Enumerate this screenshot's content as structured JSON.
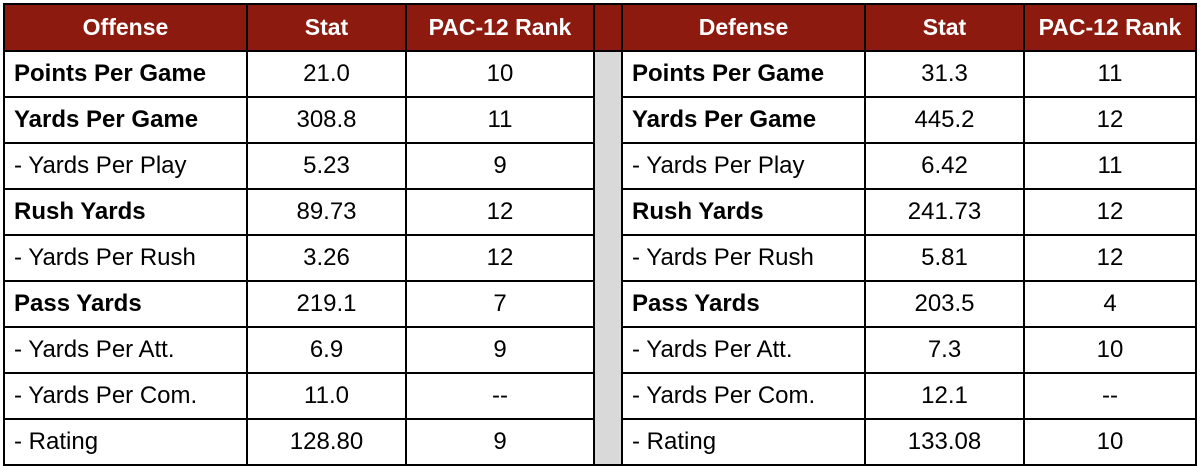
{
  "offense": {
    "headers": [
      "Offense",
      "Stat",
      "PAC-12 Rank"
    ],
    "rows": [
      {
        "label": "Points Per Game",
        "stat": "21.0",
        "rank": "10",
        "bold": true
      },
      {
        "label": "Yards Per Game",
        "stat": "308.8",
        "rank": "11",
        "bold": true
      },
      {
        "label": "- Yards Per Play",
        "stat": "5.23",
        "rank": "9",
        "bold": false
      },
      {
        "label": "Rush Yards",
        "stat": "89.73",
        "rank": "12",
        "bold": true
      },
      {
        "label": "- Yards Per Rush",
        "stat": "3.26",
        "rank": "12",
        "bold": false
      },
      {
        "label": "Pass Yards",
        "stat": "219.1",
        "rank": "7",
        "bold": true
      },
      {
        "label": "- Yards Per Att.",
        "stat": "6.9",
        "rank": "9",
        "bold": false
      },
      {
        "label": "- Yards Per Com.",
        "stat": "11.0",
        "rank": "--",
        "bold": false
      },
      {
        "label": "- Rating",
        "stat": "128.80",
        "rank": "9",
        "bold": false
      }
    ]
  },
  "defense": {
    "headers": [
      "Defense",
      "Stat",
      "PAC-12 Rank"
    ],
    "rows": [
      {
        "label": "Points Per Game",
        "stat": "31.3",
        "rank": "11",
        "bold": true
      },
      {
        "label": "Yards Per Game",
        "stat": "445.2",
        "rank": "12",
        "bold": true
      },
      {
        "label": "- Yards Per Play",
        "stat": "6.42",
        "rank": "11",
        "bold": false
      },
      {
        "label": "Rush Yards",
        "stat": "241.73",
        "rank": "12",
        "bold": true
      },
      {
        "label": "- Yards Per Rush",
        "stat": "5.81",
        "rank": "12",
        "bold": false
      },
      {
        "label": "Pass Yards",
        "stat": "203.5",
        "rank": "4",
        "bold": true
      },
      {
        "label": "- Yards Per Att.",
        "stat": "7.3",
        "rank": "10",
        "bold": false
      },
      {
        "label": "- Yards Per Com.",
        "stat": "12.1",
        "rank": "--",
        "bold": false
      },
      {
        "label": "- Rating",
        "stat": "133.08",
        "rank": "10",
        "bold": false
      }
    ]
  },
  "colors": {
    "header_bg": "#8c1a0f",
    "header_text": "#ffffff",
    "gap_column": "#d9d9d9"
  }
}
